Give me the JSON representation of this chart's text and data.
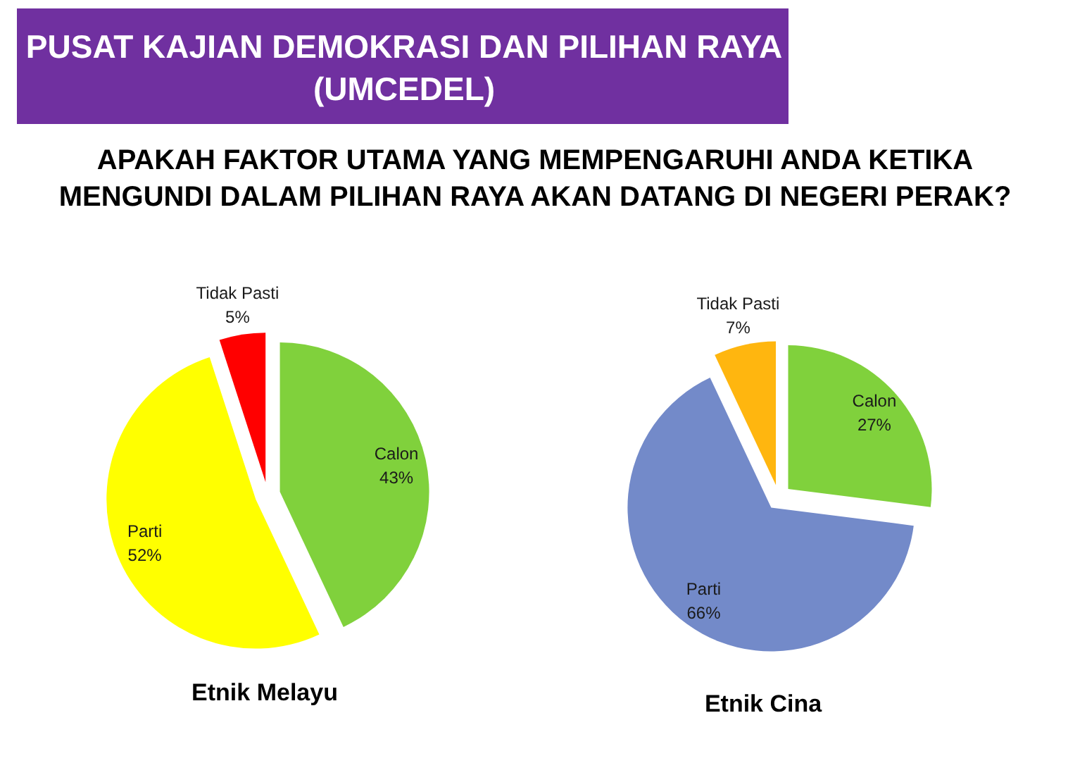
{
  "chart_data": [
    {
      "type": "other",
      "title": "APAKAH FAKTOR UTAMA YANG MEMPENGARUHI ANDA KETIKA MENGUNDI DALAM PILIHAN RAYA AKAN DATANG DI NEGERI PERAK?",
      "annotations": [
        "PUSAT KAJIAN DEMOKRASI DAN PILIHAN RAYA (UMCEDEL)"
      ]
    },
    {
      "type": "pie",
      "title": "Etnik Melayu",
      "categories": [
        "Calon",
        "Parti",
        "Tidak Pasti"
      ],
      "values": [
        43,
        52,
        5
      ],
      "colors": [
        "#80d13c",
        "#ffff00",
        "#ff0000"
      ],
      "value_labels": [
        "43%",
        "52%",
        "5%"
      ]
    },
    {
      "type": "pie",
      "title": "Etnik Cina",
      "categories": [
        "Calon",
        "Parti",
        "Tidak Pasti"
      ],
      "values": [
        27,
        66,
        7
      ],
      "colors": [
        "#80d13c",
        "#738ac9",
        "#ffb60f"
      ],
      "value_labels": [
        "27%",
        "66%",
        "7%"
      ]
    }
  ]
}
